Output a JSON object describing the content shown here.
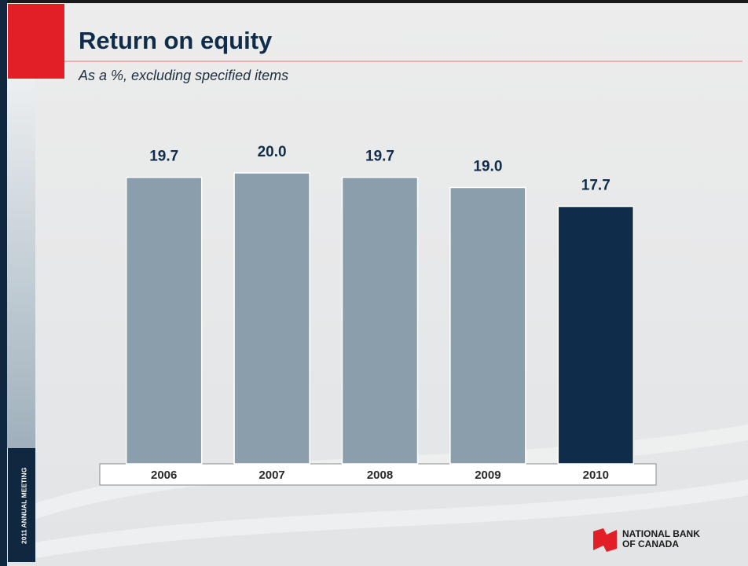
{
  "chart_data": {
    "type": "bar",
    "title": "Return on equity",
    "subtitle": "As a %, excluding specified items",
    "categories": [
      "2006",
      "2007",
      "2008",
      "2009",
      "2010"
    ],
    "values": [
      19.7,
      20.0,
      19.7,
      19.0,
      17.7
    ],
    "value_labels": [
      "19.7",
      "20.0",
      "19.7",
      "19.0",
      "17.7"
    ],
    "colors": [
      "#8b9eac",
      "#8b9eac",
      "#8b9eac",
      "#8b9eac",
      "#0f2d4a"
    ]
  },
  "side_label": "2011 ANNUAL MEETING",
  "logo": {
    "line1": "NATIONAL BANK",
    "line2": "OF CANADA"
  }
}
